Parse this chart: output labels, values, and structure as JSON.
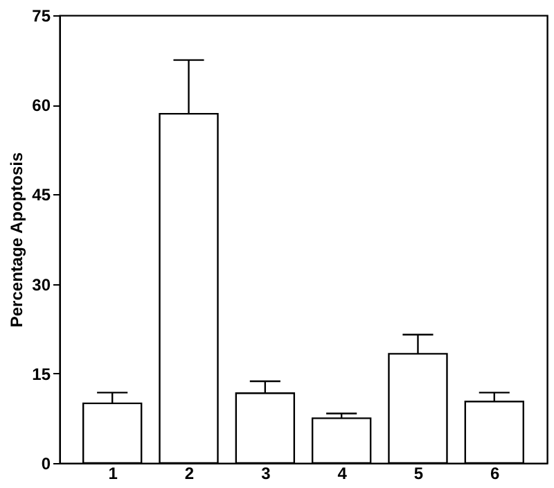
{
  "chart_data": {
    "type": "bar",
    "ylabel": "Percentage Apoptosis",
    "categories": [
      "1",
      "2",
      "3",
      "4",
      "5",
      "6"
    ],
    "values": [
      10,
      58.5,
      11.7,
      7.5,
      18.3,
      10.3
    ],
    "errors": [
      [
        10,
        11.8
      ],
      [
        58.5,
        67.5
      ],
      [
        11.7,
        13.7
      ],
      [
        7.5,
        8.3
      ],
      [
        18.3,
        21.5
      ],
      [
        10.3,
        11.8
      ]
    ],
    "color": "#ffffff",
    "ylim": [
      0,
      75
    ],
    "yticks": [
      0,
      15,
      30,
      45,
      60,
      75
    ],
    "grid": false
  }
}
